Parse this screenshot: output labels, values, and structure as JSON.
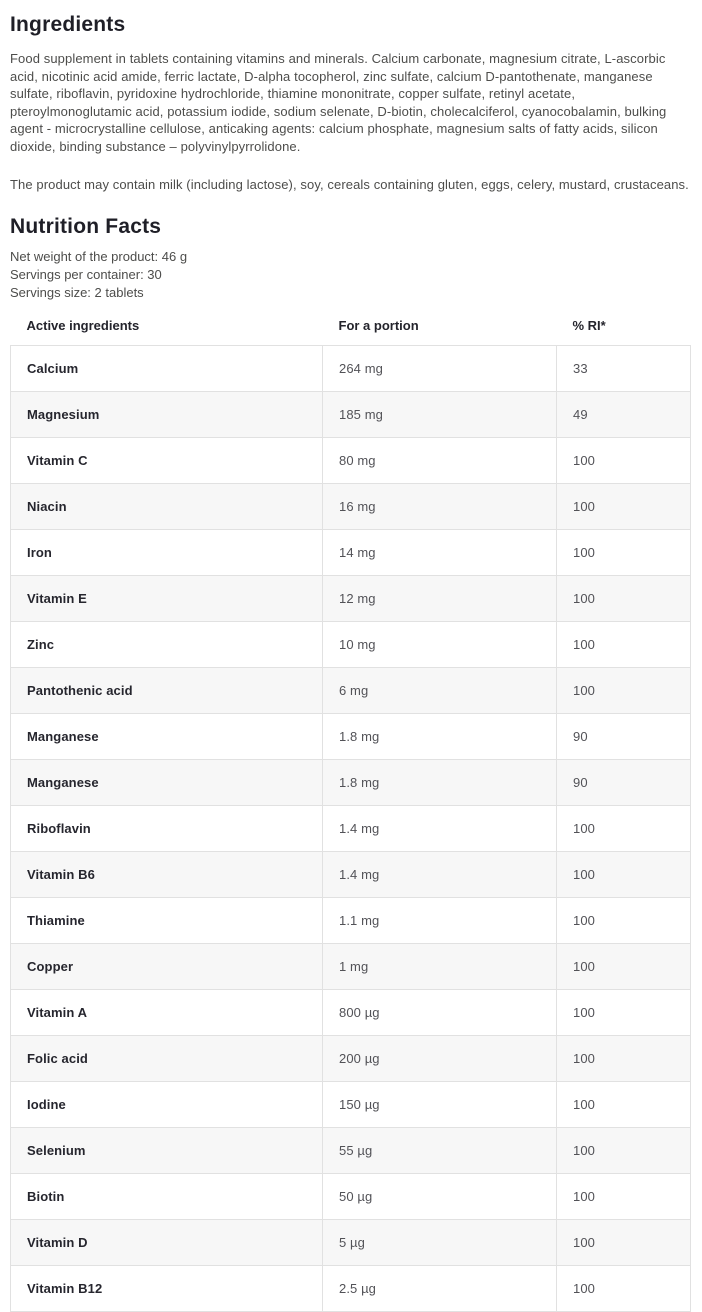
{
  "ingredients": {
    "title": "Ingredients",
    "description": "Food supplement in tablets containing vitamins and minerals. Calcium carbonate, magnesium citrate, L-ascorbic acid, nicotinic acid amide, ferric lactate, D-alpha tocopherol, zinc sulfate, calcium D-pantothenate, manganese sulfate, riboflavin, pyridoxine hydrochloride, thiamine mononitrate, copper sulfate, retinyl acetate, pteroylmonoglutamic acid, potassium iodide, sodium selenate, D-biotin, cholecalciferol, cyanocobalamin, bulking agent - microcrystalline cellulose, anticaking agents: calcium phosphate, magnesium salts of fatty acids, silicon dioxide, binding substance – polyvinylpyrrolidone.",
    "allergen_note": "The product may contain milk (including lactose), soy, cereals containing gluten, eggs, celery, mustard, crustaceans."
  },
  "nutrition": {
    "title": "Nutrition Facts",
    "net_weight": "Net weight of the product: 46 g",
    "servings_per_container": "Servings per container: 30",
    "servings_size": "Servings size: 2 tablets",
    "table": {
      "headers": [
        "Active ingredients",
        "For a portion",
        "% RI*"
      ],
      "rows": [
        [
          "Calcium",
          "264 mg",
          "33"
        ],
        [
          "Magnesium",
          "185 mg",
          "49"
        ],
        [
          "Vitamin C",
          "80 mg",
          "100"
        ],
        [
          "Niacin",
          "16 mg",
          "100"
        ],
        [
          "Iron",
          "14 mg",
          "100"
        ],
        [
          "Vitamin E",
          "12 mg",
          "100"
        ],
        [
          "Zinc",
          "10 mg",
          "100"
        ],
        [
          "Pantothenic acid",
          "6 mg",
          "100"
        ],
        [
          "Manganese",
          "1.8 mg",
          "90"
        ],
        [
          "Manganese",
          "1.8 mg",
          "90"
        ],
        [
          "Riboflavin",
          "1.4 mg",
          "100"
        ],
        [
          "Vitamin B6",
          "1.4 mg",
          "100"
        ],
        [
          "Thiamine",
          "1.1 mg",
          "100"
        ],
        [
          "Copper",
          "1 mg",
          "100"
        ],
        [
          "Vitamin A",
          "800 µg",
          "100"
        ],
        [
          "Folic acid",
          "200 µg",
          "100"
        ],
        [
          "Iodine",
          "150 µg",
          "100"
        ],
        [
          "Selenium",
          "55 µg",
          "100"
        ],
        [
          "Biotin",
          "50 µg",
          "100"
        ],
        [
          "Vitamin D",
          "5 µg",
          "100"
        ],
        [
          "Vitamin B12",
          "2.5 µg",
          "100"
        ]
      ]
    }
  },
  "colors": {
    "heading_text": "#1f1f27",
    "body_text": "#4d4d4b",
    "table_border": "#e1e1e1",
    "row_alt_background": "#f7f7f7"
  }
}
